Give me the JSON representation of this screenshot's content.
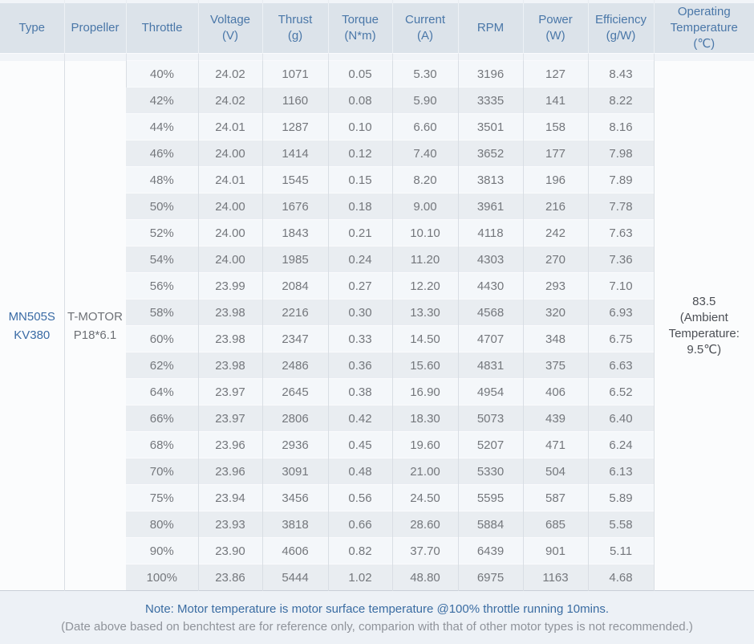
{
  "table": {
    "columns": [
      {
        "id": "type",
        "lines": [
          "Type"
        ]
      },
      {
        "id": "propeller",
        "lines": [
          "Propeller"
        ]
      },
      {
        "id": "throttle",
        "lines": [
          "Throttle"
        ]
      },
      {
        "id": "voltage",
        "lines": [
          "Voltage",
          "(V)"
        ]
      },
      {
        "id": "thrust",
        "lines": [
          "Thrust",
          "(g)"
        ]
      },
      {
        "id": "torque",
        "lines": [
          "Torque",
          "(N*m)"
        ]
      },
      {
        "id": "current",
        "lines": [
          "Current",
          "(A)"
        ]
      },
      {
        "id": "rpm",
        "lines": [
          "RPM"
        ]
      },
      {
        "id": "power",
        "lines": [
          "Power",
          "(W)"
        ]
      },
      {
        "id": "efficiency",
        "lines": [
          "Efficiency",
          "(g/W)"
        ]
      },
      {
        "id": "operating-temperature",
        "lines": [
          "Operating",
          "Temperature",
          "(℃)"
        ]
      }
    ],
    "type_cell": [
      "MN505S",
      "KV380"
    ],
    "propeller_cell": [
      "T-MOTOR",
      "P18*6.1"
    ],
    "operating_temperature_cell": [
      "83.5",
      "(Ambient",
      "Temperature:",
      "9.5℃)"
    ],
    "rows": [
      {
        "throttle": "40%",
        "voltage": "24.02",
        "thrust": "1071",
        "torque": "0.05",
        "current": "5.30",
        "rpm": "3196",
        "power": "127",
        "efficiency": "8.43"
      },
      {
        "throttle": "42%",
        "voltage": "24.02",
        "thrust": "1160",
        "torque": "0.08",
        "current": "5.90",
        "rpm": "3335",
        "power": "141",
        "efficiency": "8.22"
      },
      {
        "throttle": "44%",
        "voltage": "24.01",
        "thrust": "1287",
        "torque": "0.10",
        "current": "6.60",
        "rpm": "3501",
        "power": "158",
        "efficiency": "8.16"
      },
      {
        "throttle": "46%",
        "voltage": "24.00",
        "thrust": "1414",
        "torque": "0.12",
        "current": "7.40",
        "rpm": "3652",
        "power": "177",
        "efficiency": "7.98"
      },
      {
        "throttle": "48%",
        "voltage": "24.01",
        "thrust": "1545",
        "torque": "0.15",
        "current": "8.20",
        "rpm": "3813",
        "power": "196",
        "efficiency": "7.89"
      },
      {
        "throttle": "50%",
        "voltage": "24.00",
        "thrust": "1676",
        "torque": "0.18",
        "current": "9.00",
        "rpm": "3961",
        "power": "216",
        "efficiency": "7.78"
      },
      {
        "throttle": "52%",
        "voltage": "24.00",
        "thrust": "1843",
        "torque": "0.21",
        "current": "10.10",
        "rpm": "4118",
        "power": "242",
        "efficiency": "7.63"
      },
      {
        "throttle": "54%",
        "voltage": "24.00",
        "thrust": "1985",
        "torque": "0.24",
        "current": "11.20",
        "rpm": "4303",
        "power": "270",
        "efficiency": "7.36"
      },
      {
        "throttle": "56%",
        "voltage": "23.99",
        "thrust": "2084",
        "torque": "0.27",
        "current": "12.20",
        "rpm": "4430",
        "power": "293",
        "efficiency": "7.10"
      },
      {
        "throttle": "58%",
        "voltage": "23.98",
        "thrust": "2216",
        "torque": "0.30",
        "current": "13.30",
        "rpm": "4568",
        "power": "320",
        "efficiency": "6.93"
      },
      {
        "throttle": "60%",
        "voltage": "23.98",
        "thrust": "2347",
        "torque": "0.33",
        "current": "14.50",
        "rpm": "4707",
        "power": "348",
        "efficiency": "6.75"
      },
      {
        "throttle": "62%",
        "voltage": "23.98",
        "thrust": "2486",
        "torque": "0.36",
        "current": "15.60",
        "rpm": "4831",
        "power": "375",
        "efficiency": "6.63"
      },
      {
        "throttle": "64%",
        "voltage": "23.97",
        "thrust": "2645",
        "torque": "0.38",
        "current": "16.90",
        "rpm": "4954",
        "power": "406",
        "efficiency": "6.52"
      },
      {
        "throttle": "66%",
        "voltage": "23.97",
        "thrust": "2806",
        "torque": "0.42",
        "current": "18.30",
        "rpm": "5073",
        "power": "439",
        "efficiency": "6.40"
      },
      {
        "throttle": "68%",
        "voltage": "23.96",
        "thrust": "2936",
        "torque": "0.45",
        "current": "19.60",
        "rpm": "5207",
        "power": "471",
        "efficiency": "6.24"
      },
      {
        "throttle": "70%",
        "voltage": "23.96",
        "thrust": "3091",
        "torque": "0.48",
        "current": "21.00",
        "rpm": "5330",
        "power": "504",
        "efficiency": "6.13"
      },
      {
        "throttle": "75%",
        "voltage": "23.94",
        "thrust": "3456",
        "torque": "0.56",
        "current": "24.50",
        "rpm": "5595",
        "power": "587",
        "efficiency": "5.89"
      },
      {
        "throttle": "80%",
        "voltage": "23.93",
        "thrust": "3818",
        "torque": "0.66",
        "current": "28.60",
        "rpm": "5884",
        "power": "685",
        "efficiency": "5.58"
      },
      {
        "throttle": "90%",
        "voltage": "23.90",
        "thrust": "4606",
        "torque": "0.82",
        "current": "37.70",
        "rpm": "6439",
        "power": "901",
        "efficiency": "5.11"
      },
      {
        "throttle": "100%",
        "voltage": "23.86",
        "thrust": "5444",
        "torque": "1.02",
        "current": "48.80",
        "rpm": "6975",
        "power": "1163",
        "efficiency": "4.68"
      }
    ]
  },
  "notes": {
    "line1": "Note: Motor temperature is motor surface temperature @100% throttle running 10mins.",
    "line2": "(Date above based on benchtest are for reference only, comparion with that of other motor types is not recommended.)"
  },
  "colors": {
    "header_bg": "#dce3ea",
    "header_text": "#4a77a8",
    "row_odd_bg": "#f4f7fa",
    "row_even_bg": "#e9edf1",
    "merged_cell_bg": "#fbfcfd",
    "data_text": "#74777c",
    "type_text": "#3a6ba5",
    "note_text_primary": "#3a6ca2",
    "note_text_secondary": "#8f939a",
    "border": "#d9dee4"
  }
}
